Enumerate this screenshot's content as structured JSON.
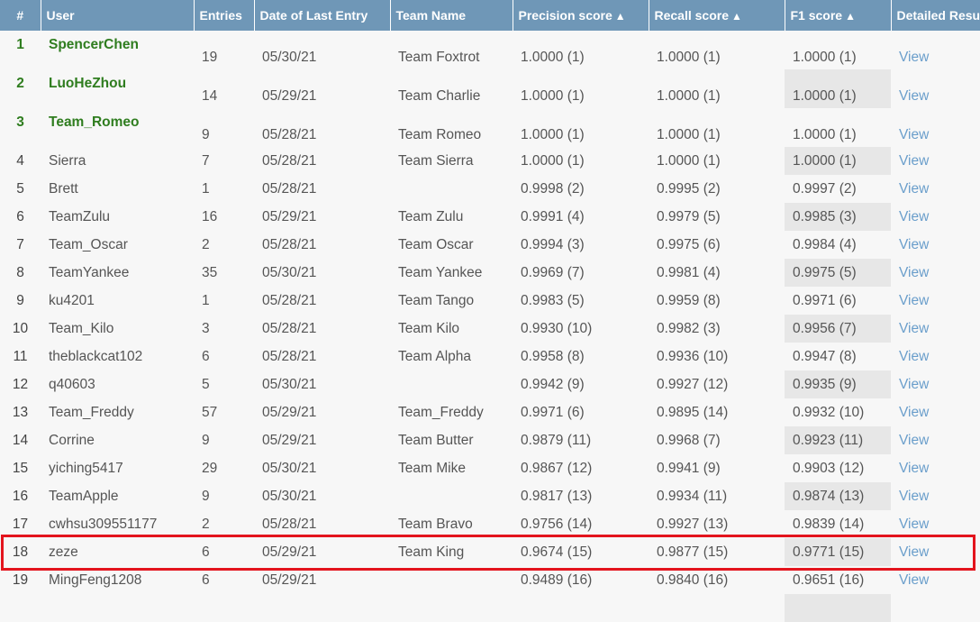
{
  "columns": [
    "#",
    "User",
    "Entries",
    "Date of Last Entry",
    "Team Name",
    "Precision score",
    "Recall score",
    "F1 score",
    "Detailed Results"
  ],
  "sort_arrow": "▲",
  "highlight_color": "#e3141d",
  "rows": [
    {
      "rank": "1",
      "user": "SpencerChen",
      "entries": "19",
      "date": "05/30/21",
      "team": "Team Foxtrot",
      "precision": "1.0000 (1)",
      "recall": "1.0000 (1)",
      "f1": "1.0000 (1)",
      "view": "View"
    },
    {
      "rank": "2",
      "user": "LuoHeZhou",
      "entries": "14",
      "date": "05/29/21",
      "team": "Team Charlie",
      "precision": "1.0000 (1)",
      "recall": "1.0000 (1)",
      "f1": "1.0000 (1)",
      "view": "View"
    },
    {
      "rank": "3",
      "user": "Team_Romeo",
      "entries": "9",
      "date": "05/28/21",
      "team": "Team Romeo",
      "precision": "1.0000 (1)",
      "recall": "1.0000 (1)",
      "f1": "1.0000 (1)",
      "view": "View"
    },
    {
      "rank": "4",
      "user": "Sierra",
      "entries": "7",
      "date": "05/28/21",
      "team": "Team Sierra",
      "precision": "1.0000 (1)",
      "recall": "1.0000 (1)",
      "f1": "1.0000 (1)",
      "view": "View"
    },
    {
      "rank": "5",
      "user": "Brett",
      "entries": "1",
      "date": "05/28/21",
      "team": "",
      "precision": "0.9998 (2)",
      "recall": "0.9995 (2)",
      "f1": "0.9997 (2)",
      "view": "View"
    },
    {
      "rank": "6",
      "user": "TeamZulu",
      "entries": "16",
      "date": "05/29/21",
      "team": "Team Zulu",
      "precision": "0.9991 (4)",
      "recall": "0.9979 (5)",
      "f1": "0.9985 (3)",
      "view": "View"
    },
    {
      "rank": "7",
      "user": "Team_Oscar",
      "entries": "2",
      "date": "05/28/21",
      "team": "Team Oscar",
      "precision": "0.9994 (3)",
      "recall": "0.9975 (6)",
      "f1": "0.9984 (4)",
      "view": "View"
    },
    {
      "rank": "8",
      "user": "TeamYankee",
      "entries": "35",
      "date": "05/30/21",
      "team": "Team Yankee",
      "precision": "0.9969 (7)",
      "recall": "0.9981 (4)",
      "f1": "0.9975 (5)",
      "view": "View"
    },
    {
      "rank": "9",
      "user": "ku4201",
      "entries": "1",
      "date": "05/28/21",
      "team": "Team Tango",
      "precision": "0.9983 (5)",
      "recall": "0.9959 (8)",
      "f1": "0.9971 (6)",
      "view": "View"
    },
    {
      "rank": "10",
      "user": "Team_Kilo",
      "entries": "3",
      "date": "05/28/21",
      "team": "Team Kilo",
      "precision": "0.9930 (10)",
      "recall": "0.9982 (3)",
      "f1": "0.9956 (7)",
      "view": "View"
    },
    {
      "rank": "11",
      "user": "theblackcat102",
      "entries": "6",
      "date": "05/28/21",
      "team": "Team Alpha",
      "precision": "0.9958 (8)",
      "recall": "0.9936 (10)",
      "f1": "0.9947 (8)",
      "view": "View"
    },
    {
      "rank": "12",
      "user": "q40603",
      "entries": "5",
      "date": "05/30/21",
      "team": "",
      "precision": "0.9942 (9)",
      "recall": "0.9927 (12)",
      "f1": "0.9935 (9)",
      "view": "View"
    },
    {
      "rank": "13",
      "user": "Team_Freddy",
      "entries": "57",
      "date": "05/29/21",
      "team": "Team_Freddy",
      "precision": "0.9971 (6)",
      "recall": "0.9895 (14)",
      "f1": "0.9932 (10)",
      "view": "View"
    },
    {
      "rank": "14",
      "user": "Corrine",
      "entries": "9",
      "date": "05/29/21",
      "team": "Team Butter",
      "precision": "0.9879 (11)",
      "recall": "0.9968 (7)",
      "f1": "0.9923 (11)",
      "view": "View"
    },
    {
      "rank": "15",
      "user": "yiching5417",
      "entries": "29",
      "date": "05/30/21",
      "team": "Team Mike",
      "precision": "0.9867 (12)",
      "recall": "0.9941 (9)",
      "f1": "0.9903 (12)",
      "view": "View"
    },
    {
      "rank": "16",
      "user": "TeamApple",
      "entries": "9",
      "date": "05/30/21",
      "team": "",
      "precision": "0.9817 (13)",
      "recall": "0.9934 (11)",
      "f1": "0.9874 (13)",
      "view": "View"
    },
    {
      "rank": "17",
      "user": "cwhsu309551177",
      "entries": "2",
      "date": "05/28/21",
      "team": "Team Bravo",
      "precision": "0.9756 (14)",
      "recall": "0.9927 (13)",
      "f1": "0.9839 (14)",
      "view": "View"
    },
    {
      "rank": "18",
      "user": "zeze",
      "entries": "6",
      "date": "05/29/21",
      "team": "Team King",
      "precision": "0.9674 (15)",
      "recall": "0.9877 (15)",
      "f1": "0.9771 (15)",
      "view": "View"
    },
    {
      "rank": "19",
      "user": "MingFeng1208",
      "entries": "6",
      "date": "05/29/21",
      "team": "",
      "precision": "0.9489 (16)",
      "recall": "0.9840 (16)",
      "f1": "0.9651 (16)",
      "view": "View"
    },
    {
      "rank": "",
      "user": "",
      "entries": "",
      "date": "",
      "team": "",
      "precision": "",
      "recall": "",
      "f1": "",
      "view": ""
    }
  ]
}
